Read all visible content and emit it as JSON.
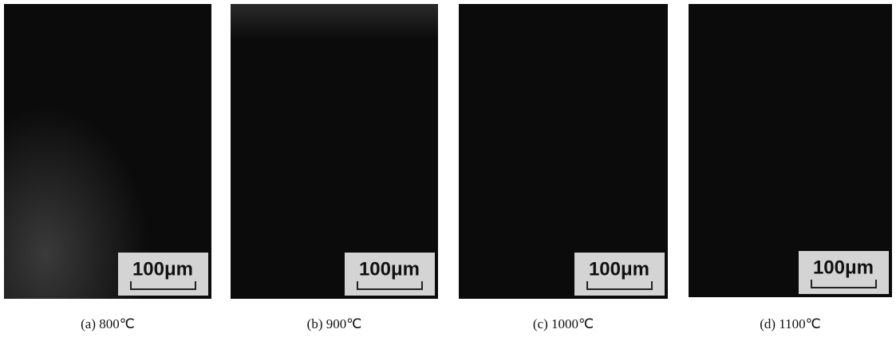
{
  "panels": [
    {
      "caption": "(a) 800℃",
      "scale_label": "100μm"
    },
    {
      "caption": "(b) 900℃",
      "scale_label": "100μm"
    },
    {
      "caption": "(c) 1000℃",
      "scale_label": "100μm"
    },
    {
      "caption": "(d) 1100℃",
      "scale_label": "100μm"
    }
  ]
}
